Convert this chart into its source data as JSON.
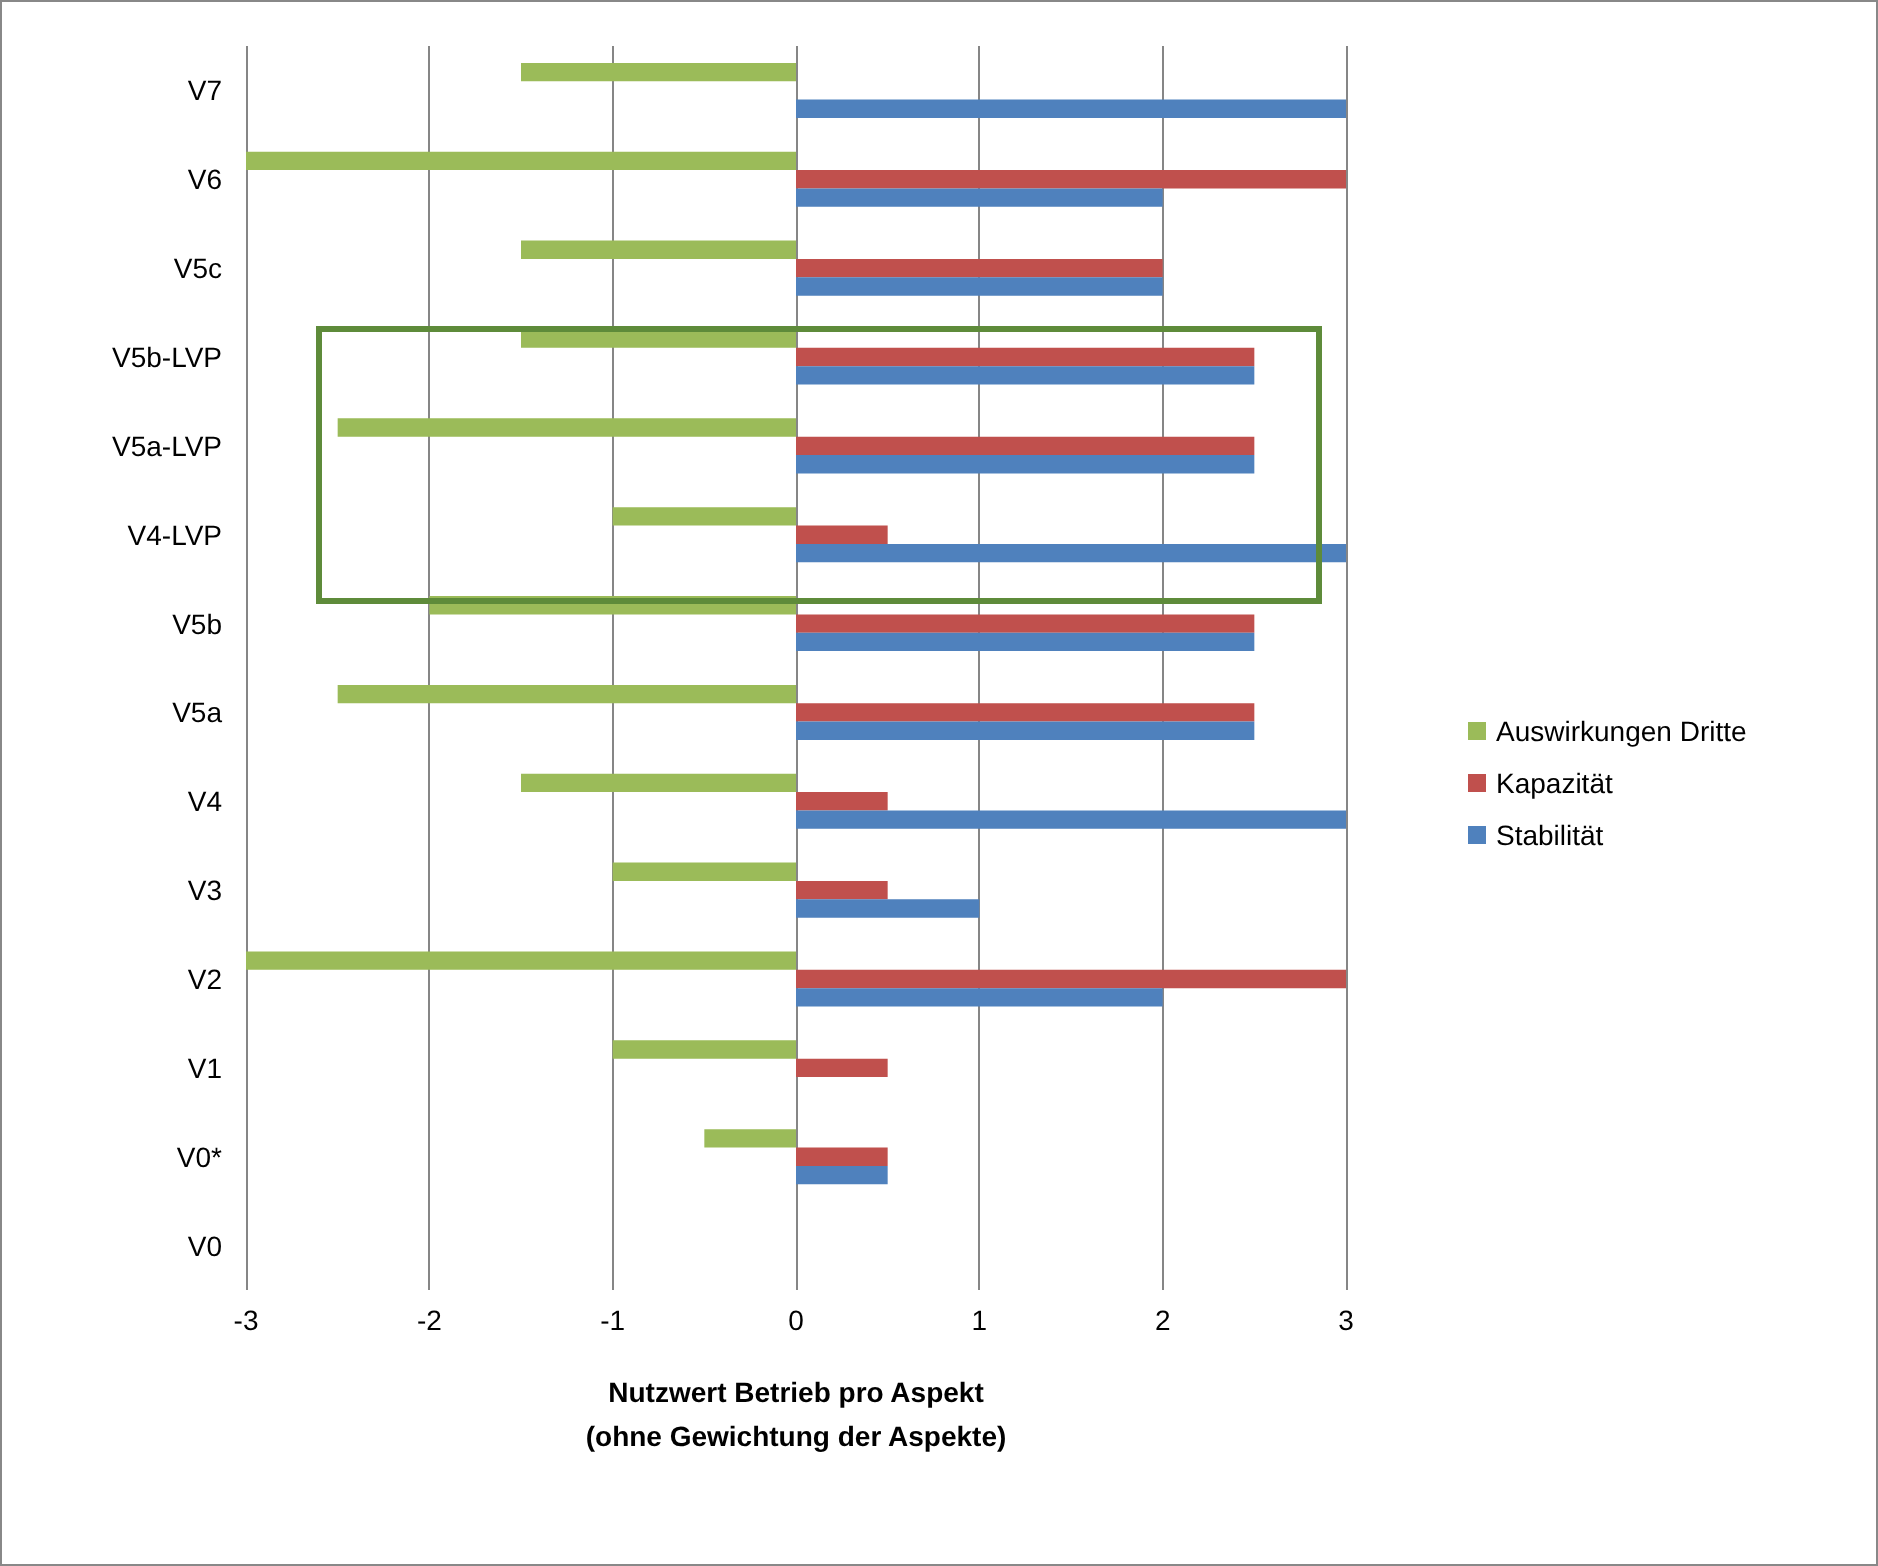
{
  "chart_data": {
    "type": "bar",
    "orientation": "horizontal",
    "categories": [
      "V7",
      "V6",
      "V5c",
      "V5b-LVP",
      "V5a-LVP",
      "V4-LVP",
      "V5b",
      "V5a",
      "V4",
      "V3",
      "V2",
      "V1",
      "V0*",
      "V0"
    ],
    "series": [
      {
        "name": "Auswirkungen Dritte",
        "color": "#9bbb59",
        "values": [
          -1.5,
          -3,
          -1.5,
          -1.5,
          -2.5,
          -1,
          -2,
          -2.5,
          -1.5,
          -1,
          -3,
          -1,
          -0.5,
          0
        ]
      },
      {
        "name": "Kapazität",
        "color": "#c0504d",
        "values": [
          0,
          3,
          2,
          2.5,
          2.5,
          0.5,
          2.5,
          2.5,
          0.5,
          0.5,
          3,
          0.5,
          0.5,
          0
        ]
      },
      {
        "name": "Stabilität",
        "color": "#4f81bd",
        "values": [
          3,
          2,
          2,
          2.5,
          2.5,
          3,
          2.5,
          2.5,
          3,
          1,
          2,
          0,
          0.5,
          0
        ]
      }
    ],
    "xlabel": "Nutzwert Betrieb pro Aspekt\n(ohne Gewichtung der Aspekte)",
    "xlim": [
      -3,
      3
    ],
    "xticks": [
      -3,
      -2,
      -1,
      0,
      1,
      2,
      3
    ],
    "grid": "x",
    "legend": "right"
  }
}
